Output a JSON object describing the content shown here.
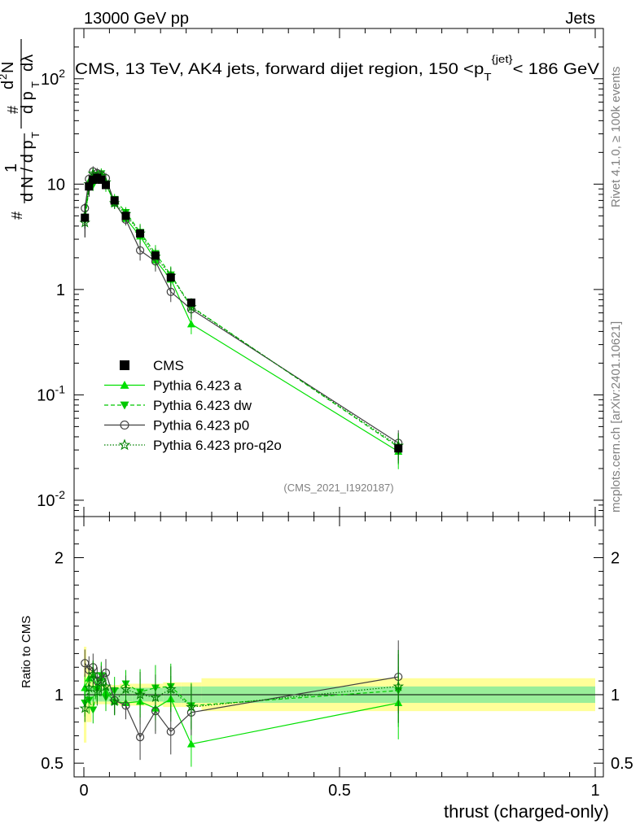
{
  "header": {
    "left": "13000 GeV pp",
    "right": "Jets"
  },
  "side_labels": {
    "rivet": "Rivet 4.1.0, ≥ 100k events",
    "mcplots": "mcplots.cern.ch [arXiv:2401.10621]"
  },
  "chart_data": {
    "type": "line",
    "title": "CMS, 13 TeV, AK4 jets, forward dijet region, 150 <p_T^{jet}< 186 GeV",
    "analysis_tag": "(CMS_2021_I1920187)",
    "xlabel": "thrust (charged-only)",
    "ylabel": "1/dN/dp_T  d²N/dp_T dλ",
    "ratio_ylabel": "Ratio to CMS",
    "xlim": [
      0,
      1
    ],
    "ylim_main": [
      0.007,
      300
    ],
    "ylim_ratio": [
      0.4,
      2.3
    ],
    "yscale_main": "log",
    "x_ticks": [
      "0",
      "0.5",
      "1"
    ],
    "y_ticks_main": [
      "10^{-2}",
      "10^{-1}",
      "1",
      "10",
      "10^{2}"
    ],
    "y_ticks_ratio": [
      "0.5",
      "1",
      "2"
    ],
    "x": [
      0.002,
      0.01,
      0.018,
      0.026,
      0.034,
      0.043,
      0.06,
      0.082,
      0.11,
      0.14,
      0.17,
      0.21,
      0.615
    ],
    "bin_edges": [
      0,
      0.005,
      0.015,
      0.021,
      0.03,
      0.038,
      0.048,
      0.07,
      0.095,
      0.125,
      0.155,
      0.19,
      0.23,
      1.0
    ],
    "data": {
      "name": "CMS",
      "values": [
        4.8,
        9.5,
        11.0,
        11.5,
        11.0,
        9.8,
        7.0,
        5.0,
        3.4,
        2.1,
        1.3,
        0.75,
        0.031
      ],
      "stat_band": [
        0.08,
        0.06,
        0.05,
        0.05,
        0.05,
        0.05,
        0.05,
        0.05,
        0.05,
        0.05,
        0.06,
        0.06,
        0.06
      ],
      "total_band": [
        0.35,
        0.2,
        0.1,
        0.07,
        0.07,
        0.07,
        0.07,
        0.08,
        0.08,
        0.08,
        0.09,
        0.09,
        0.12
      ]
    },
    "series": [
      {
        "name": "Pythia 6.423 a",
        "color": "#00e000",
        "dash": "",
        "marker": "triangle-up",
        "values": [
          5.1,
          10.6,
          12.5,
          12.2,
          12.4,
          10.0,
          6.6,
          4.7,
          3.2,
          1.9,
          1.25,
          0.47,
          0.029
        ],
        "ratio": [
          1.05,
          1.12,
          1.14,
          1.06,
          1.13,
          1.02,
          0.95,
          0.94,
          0.95,
          0.9,
          0.97,
          0.64,
          0.94
        ]
      },
      {
        "name": "Pythia 6.423 dw",
        "color": "#00c800",
        "dash": "5,3",
        "marker": "triangle-down",
        "values": [
          4.5,
          9.1,
          9.8,
          12.0,
          12.6,
          9.6,
          7.2,
          5.4,
          3.5,
          2.2,
          1.38,
          0.69,
          0.032
        ],
        "ratio": [
          0.94,
          0.96,
          0.89,
          1.04,
          1.14,
          0.98,
          1.03,
          1.08,
          1.02,
          1.05,
          1.06,
          0.92,
          1.03
        ]
      },
      {
        "name": "Pythia 6.423 p0",
        "color": "#404040",
        "dash": "",
        "marker": "circle",
        "values": [
          5.9,
          11.2,
          13.2,
          12.7,
          12.2,
          11.4,
          6.7,
          4.6,
          2.35,
          1.85,
          0.95,
          0.65,
          0.035
        ],
        "ratio": [
          1.23,
          1.18,
          1.2,
          1.1,
          1.11,
          1.16,
          0.96,
          0.92,
          0.69,
          0.88,
          0.73,
          0.87,
          1.13
        ]
      },
      {
        "name": "Pythia 6.423 pro-q2o",
        "color": "#008000",
        "dash": "1.5,2",
        "marker": "star",
        "values": [
          4.3,
          10.0,
          12.6,
          11.7,
          12.0,
          10.4,
          6.6,
          5.2,
          3.4,
          2.05,
          1.35,
          0.68,
          0.033
        ],
        "ratio": [
          0.9,
          1.05,
          1.15,
          1.02,
          1.09,
          1.06,
          0.95,
          1.04,
          1.0,
          0.98,
          1.04,
          0.91,
          1.06
        ]
      }
    ]
  }
}
